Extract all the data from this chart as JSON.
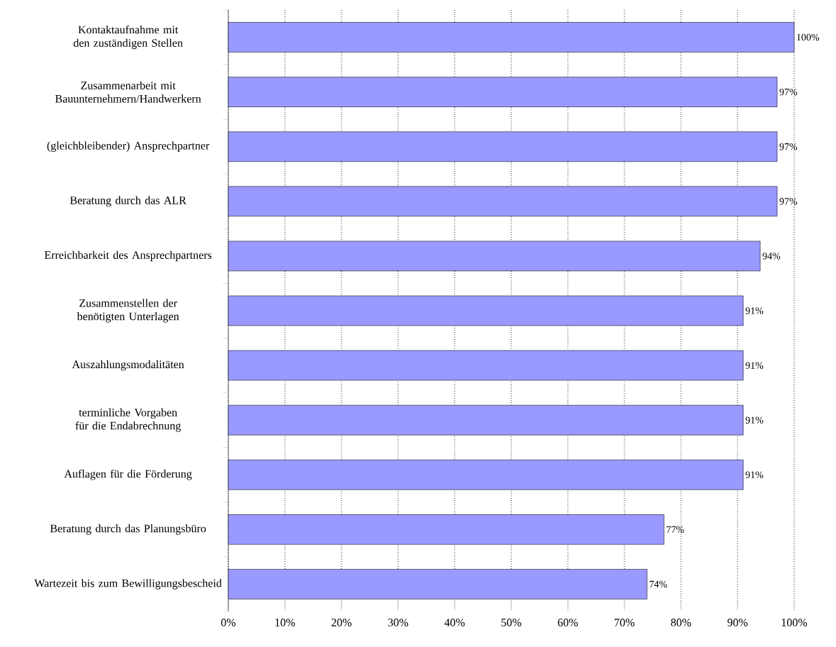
{
  "chart_data": {
    "type": "bar",
    "orientation": "horizontal",
    "color": "#9999ff",
    "grid": "x",
    "categories": [
      "Kontaktaufnahme mit den zuständigen Stellen",
      "Zusammenarbeit mit Bauunternehmern/Handwerkern",
      "(gleichbleibender) Ansprechpartner",
      "Beratung durch das ALR",
      "Erreichbarkeit des Ansprechpartners",
      "Zusammenstellen der benötigten Unterlagen",
      "Auszahlungsmodalitäten",
      "terminliche Vorgaben für die Endabrechnung",
      "Auflagen für die Förderung",
      "Beratung durch das Planungsbüro",
      "Wartezeit bis zum Bewilligungsbescheid"
    ],
    "values": [
      100,
      97,
      97,
      97,
      94,
      91,
      91,
      91,
      91,
      77,
      74
    ],
    "value_labels": [
      "100%",
      "97%",
      "97%",
      "97%",
      "94%",
      "91%",
      "91%",
      "91%",
      "91%",
      "77%",
      "74%"
    ],
    "xlim": [
      0,
      100
    ],
    "xticks": [
      {
        "value": 0,
        "label": "0%"
      },
      {
        "value": 10,
        "label": "10%"
      },
      {
        "value": 20,
        "label": "20%"
      },
      {
        "value": 30,
        "label": "30%"
      },
      {
        "value": 40,
        "label": "40%"
      },
      {
        "value": 50,
        "label": "50%"
      },
      {
        "value": 60,
        "label": "60%"
      },
      {
        "value": 70,
        "label": "70%"
      },
      {
        "value": 80,
        "label": "80%"
      },
      {
        "value": 90,
        "label": "90%"
      },
      {
        "value": 100,
        "label": "100%"
      }
    ]
  }
}
